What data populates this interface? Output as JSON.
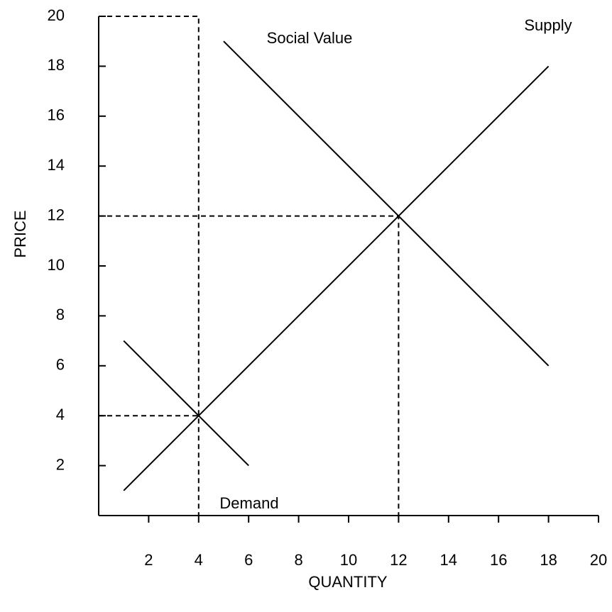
{
  "chart_data": {
    "type": "line",
    "xlabel": "QUANTITY",
    "ylabel": "PRICE",
    "xlim": [
      0,
      20
    ],
    "ylim": [
      0,
      20
    ],
    "xticks": [
      2,
      4,
      6,
      8,
      10,
      12,
      14,
      16,
      18,
      20
    ],
    "yticks": [
      2,
      4,
      6,
      8,
      10,
      12,
      14,
      16,
      18,
      20
    ],
    "color": "#000000",
    "series": [
      {
        "name": "Supply",
        "x": [
          1,
          18
        ],
        "values": [
          1,
          18
        ]
      },
      {
        "name": "Social Value",
        "x": [
          5,
          18
        ],
        "values": [
          19,
          6
        ]
      },
      {
        "name": "Demand",
        "x": [
          1,
          6
        ],
        "values": [
          7,
          2
        ]
      }
    ],
    "guides": [
      {
        "x": [
          0,
          4,
          4
        ],
        "values": [
          20,
          20,
          0
        ]
      },
      {
        "x": [
          0,
          12,
          12
        ],
        "values": [
          12,
          12,
          0
        ]
      },
      {
        "x": [
          0,
          4
        ],
        "values": [
          4,
          4
        ]
      }
    ]
  }
}
